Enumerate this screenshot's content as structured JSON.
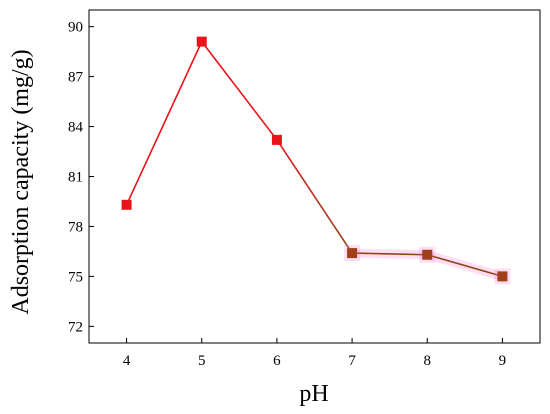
{
  "chart_data": {
    "type": "line",
    "title": "",
    "xlabel": "pH",
    "ylabel": "Adsorption capacity (mg/g)",
    "x": [
      4,
      5,
      6,
      7,
      8,
      9
    ],
    "xticks": [
      4,
      5,
      6,
      7,
      8,
      9
    ],
    "yticks": [
      72,
      75,
      78,
      81,
      84,
      87,
      90
    ],
    "xlim": [
      3.5,
      9.5
    ],
    "ylim": [
      71,
      91
    ],
    "grid": false,
    "series": [
      {
        "values": [
          79.3,
          89.1,
          83.2,
          76.4,
          76.3,
          75.0
        ],
        "color": "#e8141a"
      }
    ],
    "colors": {
      "marker": "#e8141a",
      "line_high": "#e8141a",
      "line_low": "#8b4513",
      "marker_low": "#a0401a",
      "glow": "#ff66cc"
    }
  }
}
